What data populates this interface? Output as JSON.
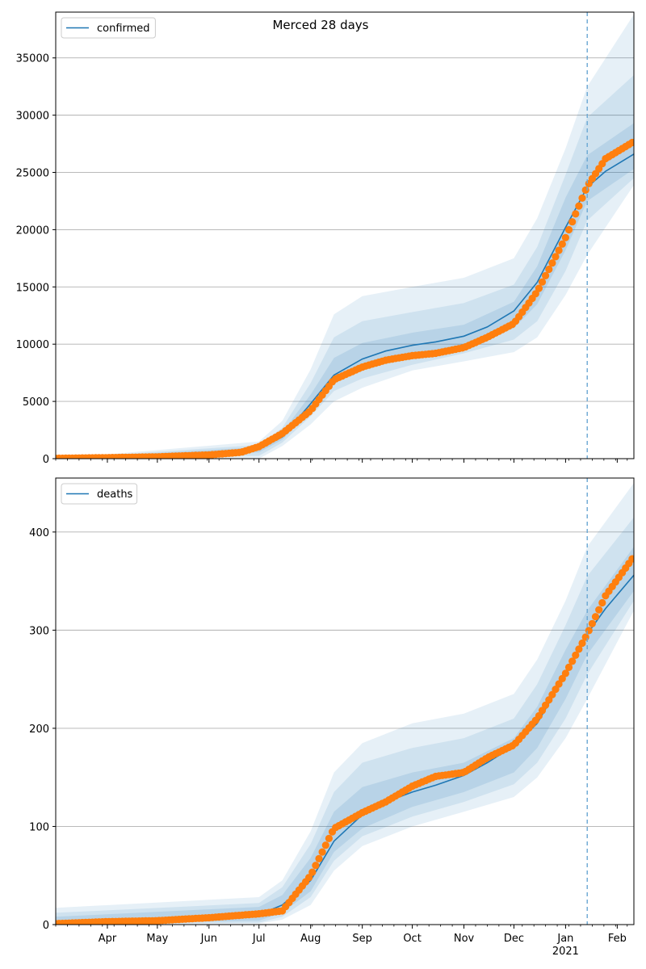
{
  "title": "Merced 28 days",
  "colors": {
    "model": "#1f77b4",
    "observed": "#ff7f0e",
    "band": "#1f77b4",
    "grid": "#b0b0b0",
    "forecast_line": "#6aa7d3"
  },
  "chart_data": [
    {
      "type": "line",
      "legend": [
        "confirmed"
      ],
      "legend_position": "top-left",
      "grid": "horizontal",
      "x_range": [
        "2020-03-01",
        "2021-02-11"
      ],
      "forecast_start": "2021-01-14",
      "x_tick_labels": [
        "Apr",
        "May",
        "Jun",
        "Jul",
        "Aug",
        "Sep",
        "Oct",
        "Nov",
        "Dec",
        "Jan\n2021",
        "Feb"
      ],
      "ylim": [
        0,
        39000
      ],
      "y_ticks": [
        0,
        5000,
        10000,
        15000,
        20000,
        25000,
        30000,
        35000
      ],
      "series": [
        {
          "name": "confirmed",
          "kind": "model",
          "x": [
            "2020-03-01",
            "2020-04-01",
            "2020-05-01",
            "2020-06-01",
            "2020-07-01",
            "2020-07-15",
            "2020-08-01",
            "2020-08-15",
            "2020-09-01",
            "2020-09-15",
            "2020-10-01",
            "2020-10-15",
            "2020-11-01",
            "2020-11-15",
            "2020-12-01",
            "2020-12-15",
            "2021-01-01",
            "2021-01-14",
            "2021-01-25",
            "2021-02-11"
          ],
          "values": [
            0,
            30,
            130,
            330,
            850,
            1900,
            4800,
            7300,
            8700,
            9400,
            9900,
            10200,
            10700,
            11500,
            12900,
            15400,
            20200,
            23700,
            25100,
            26600
          ]
        },
        {
          "name": "observed",
          "kind": "points",
          "x": [
            "2020-03-01",
            "2020-04-01",
            "2020-05-01",
            "2020-06-01",
            "2020-06-20",
            "2020-07-01",
            "2020-07-15",
            "2020-08-01",
            "2020-08-15",
            "2020-09-01",
            "2020-09-15",
            "2020-10-01",
            "2020-10-15",
            "2020-11-01",
            "2020-11-15",
            "2020-12-01",
            "2020-12-15",
            "2021-01-01",
            "2021-01-14",
            "2021-01-25",
            "2021-02-11"
          ],
          "values": [
            30,
            90,
            160,
            330,
            550,
            1050,
            2200,
            4200,
            6900,
            8000,
            8600,
            9000,
            9200,
            9700,
            10600,
            11800,
            14600,
            19300,
            23800,
            26200,
            27700
          ]
        }
      ],
      "bands": [
        {
          "level": "outer",
          "x": [
            "2020-03-01",
            "2020-07-01",
            "2020-07-15",
            "2020-08-01",
            "2020-08-15",
            "2020-09-01",
            "2020-10-01",
            "2020-11-01",
            "2020-12-01",
            "2020-12-15",
            "2021-01-01",
            "2021-01-14",
            "2021-02-11"
          ],
          "lower": [
            0,
            0,
            1100,
            3000,
            5000,
            6200,
            7700,
            8500,
            9300,
            10600,
            14300,
            17800,
            23900
          ],
          "upper": [
            0,
            1500,
            3300,
            7800,
            12600,
            14200,
            15000,
            15800,
            17500,
            21000,
            27100,
            32500,
            38800
          ]
        },
        {
          "level": "middle",
          "x": [
            "2020-03-01",
            "2020-07-01",
            "2020-07-15",
            "2020-08-01",
            "2020-08-15",
            "2020-09-01",
            "2020-10-01",
            "2020-11-01",
            "2020-12-01",
            "2020-12-15",
            "2021-01-01",
            "2021-01-14",
            "2021-02-11"
          ],
          "lower": [
            0,
            250,
            1400,
            3700,
            5900,
            7000,
            8200,
            9200,
            10400,
            12000,
            16400,
            20800,
            24500
          ],
          "upper": [
            0,
            1200,
            2700,
            6600,
            10600,
            12000,
            12800,
            13600,
            15200,
            18500,
            24800,
            29800,
            33500
          ]
        },
        {
          "level": "inner",
          "x": [
            "2020-03-01",
            "2020-07-01",
            "2020-07-15",
            "2020-08-01",
            "2020-08-15",
            "2020-09-01",
            "2020-10-01",
            "2020-11-01",
            "2020-12-01",
            "2020-12-15",
            "2021-01-01",
            "2021-01-14",
            "2021-02-11"
          ],
          "lower": [
            0,
            550,
            1650,
            4200,
            6600,
            7800,
            8900,
            9800,
            11400,
            13500,
            18200,
            22500,
            25300
          ],
          "upper": [
            0,
            1000,
            2300,
            5600,
            8800,
            10100,
            11000,
            11700,
            13700,
            16800,
            22800,
            26500,
            29300
          ]
        }
      ]
    },
    {
      "type": "line",
      "legend": [
        "deaths"
      ],
      "legend_position": "top-left",
      "grid": "horizontal",
      "x_range": [
        "2020-03-01",
        "2021-02-11"
      ],
      "forecast_start": "2021-01-14",
      "x_tick_labels": [
        "Apr",
        "May",
        "Jun",
        "Jul",
        "Aug",
        "Sep",
        "Oct",
        "Nov",
        "Dec",
        "Jan\n2021",
        "Feb"
      ],
      "ylim": [
        0,
        455
      ],
      "y_ticks": [
        0,
        100,
        200,
        300,
        400
      ],
      "series": [
        {
          "name": "deaths",
          "kind": "model",
          "x": [
            "2020-03-01",
            "2020-04-01",
            "2020-05-01",
            "2020-06-01",
            "2020-07-01",
            "2020-07-15",
            "2020-08-01",
            "2020-08-15",
            "2020-09-01",
            "2020-09-15",
            "2020-10-01",
            "2020-10-15",
            "2020-11-01",
            "2020-11-15",
            "2020-12-01",
            "2020-12-15",
            "2021-01-01",
            "2021-01-14",
            "2021-01-25",
            "2021-02-11"
          ],
          "values": [
            1,
            2,
            3,
            5,
            10,
            20,
            45,
            85,
            112,
            125,
            135,
            142,
            152,
            165,
            182,
            205,
            255,
            296,
            322,
            356
          ]
        },
        {
          "name": "observed",
          "kind": "points",
          "x": [
            "2020-03-01",
            "2020-04-01",
            "2020-05-01",
            "2020-06-01",
            "2020-07-01",
            "2020-07-15",
            "2020-08-01",
            "2020-08-15",
            "2020-09-01",
            "2020-09-15",
            "2020-10-01",
            "2020-10-15",
            "2020-11-01",
            "2020-11-15",
            "2020-12-01",
            "2020-12-15",
            "2021-01-01",
            "2021-01-14",
            "2021-01-25",
            "2021-02-11"
          ],
          "values": [
            1,
            3,
            4,
            7,
            11,
            14,
            50,
            98,
            114,
            125,
            141,
            151,
            155,
            170,
            183,
            210,
            256,
            296,
            335,
            375
          ]
        }
      ],
      "bands": [
        {
          "level": "outer",
          "x": [
            "2020-03-01",
            "2020-07-01",
            "2020-07-15",
            "2020-08-01",
            "2020-08-15",
            "2020-09-01",
            "2020-10-01",
            "2020-11-01",
            "2020-12-01",
            "2020-12-15",
            "2021-01-01",
            "2021-01-14",
            "2021-02-11"
          ],
          "lower": [
            0,
            1,
            5,
            20,
            55,
            80,
            100,
            115,
            130,
            150,
            190,
            230,
            320
          ],
          "upper": [
            17,
            28,
            45,
            95,
            155,
            185,
            205,
            215,
            235,
            270,
            330,
            385,
            450
          ]
        },
        {
          "level": "middle",
          "x": [
            "2020-03-01",
            "2020-07-01",
            "2020-07-15",
            "2020-08-01",
            "2020-08-15",
            "2020-09-01",
            "2020-10-01",
            "2020-11-01",
            "2020-12-01",
            "2020-12-15",
            "2021-01-01",
            "2021-01-14",
            "2021-02-11"
          ],
          "lower": [
            0,
            2,
            8,
            28,
            65,
            90,
            110,
            125,
            143,
            165,
            210,
            255,
            330
          ],
          "upper": [
            12,
            22,
            38,
            82,
            135,
            165,
            180,
            190,
            210,
            245,
            305,
            355,
            415
          ]
        },
        {
          "level": "inner",
          "x": [
            "2020-03-01",
            "2020-07-01",
            "2020-07-15",
            "2020-08-01",
            "2020-08-15",
            "2020-09-01",
            "2020-10-01",
            "2020-11-01",
            "2020-12-01",
            "2020-12-15",
            "2021-01-01",
            "2021-01-14",
            "2021-02-11"
          ],
          "lower": [
            0,
            4,
            12,
            34,
            74,
            98,
            120,
            135,
            155,
            180,
            230,
            275,
            340
          ],
          "upper": [
            8,
            18,
            30,
            68,
            115,
            140,
            155,
            165,
            190,
            222,
            280,
            320,
            385
          ]
        }
      ]
    }
  ]
}
